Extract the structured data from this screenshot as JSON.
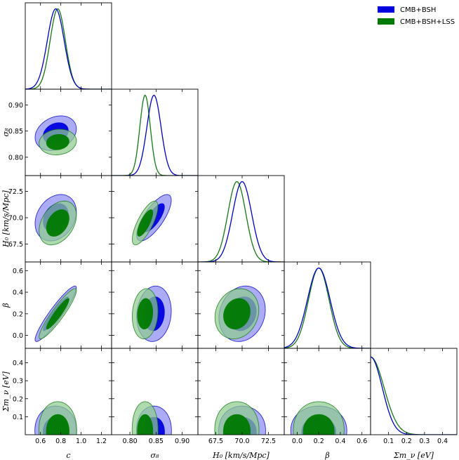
{
  "chart_data": {
    "type": "triangle",
    "parameters": [
      {
        "id": "c",
        "label": "c",
        "range": [
          0.45,
          1.3
        ],
        "ticks": [
          0.6,
          0.8,
          1.0,
          1.2
        ],
        "tick_labels": [
          "0.6",
          "0.8",
          "1.0",
          "1.2"
        ]
      },
      {
        "id": "sigma8",
        "label": "σ₈",
        "range": [
          0.765,
          0.93
        ],
        "ticks": [
          0.8,
          0.85,
          0.9
        ],
        "tick_labels": [
          "0.80",
          "0.85",
          "0.90"
        ]
      },
      {
        "id": "H0",
        "label": "H₀ [km/s/Mpc]",
        "range": [
          65.8,
          74.0
        ],
        "ticks": [
          67.5,
          70.0,
          72.5
        ],
        "tick_labels": [
          "67.5",
          "70.0",
          "72.5"
        ]
      },
      {
        "id": "beta",
        "label": "β",
        "range": [
          -0.12,
          0.68
        ],
        "ticks": [
          0.0,
          0.2,
          0.4,
          0.6
        ],
        "tick_labels": [
          "0.0",
          "0.2",
          "0.4",
          "0.6"
        ]
      },
      {
        "id": "sum_mnu",
        "label": "Σm_ν [eV]",
        "range": [
          0.0,
          0.48
        ],
        "ticks": [
          0.1,
          0.2,
          0.3,
          0.4
        ],
        "tick_labels": [
          "0.1",
          "0.2",
          "0.3",
          "0.4"
        ]
      }
    ],
    "series": [
      {
        "name": "CMB+BSH",
        "color_dark": "#0000e0",
        "color_light": "#8c8cf2",
        "line": "#0000cc",
        "mean": {
          "c": 0.75,
          "sigma8": 0.846,
          "H0": 70.0,
          "beta": 0.2
        },
        "sd": {
          "c": 0.083,
          "sigma8": 0.0135,
          "H0": 0.9,
          "beta": 0.105
        },
        "corr": {
          "c|sigma8": 0.25,
          "c|H0": 0.25,
          "c|beta": 0.93,
          "sigma8|H0": 0.75,
          "sigma8|beta": 0.1,
          "H0|beta": 0.15
        },
        "mnu_scale": 0.065
      },
      {
        "name": "CMB+BSH+LSS",
        "color_dark": "#007a00",
        "color_light": "#8fcc8f",
        "line": "#127a12",
        "mean": {
          "c": 0.77,
          "sigma8": 0.829,
          "H0": 69.5,
          "beta": 0.2
        },
        "sd": {
          "c": 0.075,
          "sigma8": 0.01,
          "H0": 0.85,
          "beta": 0.095
        },
        "corr": {
          "c|sigma8": 0.1,
          "c|H0": 0.35,
          "c|beta": 0.92,
          "sigma8|H0": 0.75,
          "sigma8|beta": 0.1,
          "H0|beta": 0.15
        },
        "mnu_scale": 0.075
      }
    ],
    "legend": {
      "placement": "top-right",
      "entries": [
        "CMB+BSH",
        "CMB+BSH+LSS"
      ]
    }
  }
}
